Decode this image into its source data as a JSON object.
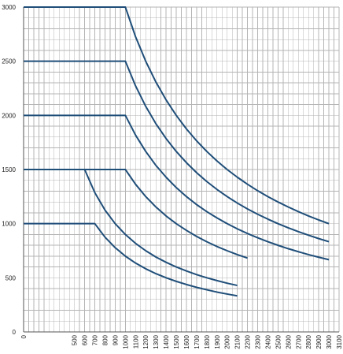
{
  "chart_data": {
    "type": "line",
    "title": "",
    "xlabel": "",
    "ylabel": "",
    "xlim": [
      0,
      3100
    ],
    "ylim": [
      0,
      3000
    ],
    "x_minor_step": 50,
    "y_minor_step": 100,
    "x_ticks": [
      0,
      500,
      600,
      700,
      800,
      900,
      1000,
      1100,
      1200,
      1300,
      1400,
      1500,
      1600,
      1700,
      1800,
      1900,
      2000,
      2100,
      2200,
      2300,
      2400,
      2500,
      2600,
      2700,
      2800,
      2900,
      3000,
      3100
    ],
    "x_tick_labels": [
      "0",
      "500",
      "600",
      "700",
      "800",
      "900",
      "1000",
      "1100",
      "1200",
      "1300",
      "1400",
      "1500",
      "1600",
      "1700",
      "1800",
      "1900",
      "2000",
      "2100",
      "2200",
      "2300",
      "2400",
      "2500",
      "2600",
      "2700",
      "2800",
      "2900",
      "3000",
      "3100"
    ],
    "y_ticks": [
      0,
      500,
      1000,
      1500,
      2000,
      2500,
      3000
    ],
    "y_tick_labels": [
      "0",
      "500",
      "1000",
      "1500",
      "2000",
      "2500",
      "3000"
    ],
    "grid": true,
    "legend": "none",
    "line_color": "#1f4e79",
    "series": [
      {
        "x": [
          0,
          1000,
          1100,
          1200,
          1300,
          1400,
          1500,
          1600,
          1700,
          1800,
          1900,
          2000,
          2100,
          2200,
          2300,
          2400,
          2500,
          2600,
          2700,
          2800,
          2900,
          3000
        ],
        "y": [
          3000,
          3000,
          2727,
          2500,
          2308,
          2143,
          2000,
          1875,
          1765,
          1667,
          1579,
          1500,
          1429,
          1364,
          1304,
          1250,
          1200,
          1154,
          1111,
          1071,
          1034,
          1000
        ]
      },
      {
        "x": [
          0,
          1000,
          1100,
          1200,
          1300,
          1400,
          1500,
          1600,
          1700,
          1800,
          1900,
          2000,
          2100,
          2200,
          2300,
          2400,
          2500,
          2600,
          2700,
          2800,
          2900,
          3000
        ],
        "y": [
          2500,
          2500,
          2273,
          2083,
          1923,
          1786,
          1667,
          1563,
          1471,
          1389,
          1316,
          1250,
          1190,
          1136,
          1087,
          1042,
          1000,
          962,
          926,
          893,
          862,
          833
        ]
      },
      {
        "x": [
          0,
          1000,
          1100,
          1200,
          1300,
          1400,
          1500,
          1600,
          1700,
          1800,
          1900,
          2000,
          2100,
          2200,
          2300,
          2400,
          2500,
          2600,
          2700,
          2800,
          2900,
          3000
        ],
        "y": [
          2000,
          2000,
          1818,
          1667,
          1538,
          1429,
          1333,
          1250,
          1176,
          1111,
          1053,
          1000,
          952,
          909,
          870,
          833,
          800,
          769,
          741,
          714,
          690,
          667
        ]
      },
      {
        "x": [
          0,
          1000,
          1100,
          1200,
          1300,
          1400,
          1500,
          1600,
          1700,
          1800,
          1900,
          2000,
          2100,
          2200
        ],
        "y": [
          1500,
          1500,
          1364,
          1250,
          1154,
          1071,
          1000,
          938,
          882,
          833,
          789,
          750,
          714,
          682
        ]
      },
      {
        "x": [
          0,
          700,
          800,
          900,
          1000,
          1100,
          1200,
          1300,
          1400,
          1500,
          1600,
          1700,
          1800,
          1900,
          2000,
          2100
        ],
        "y": [
          1000,
          1000,
          875,
          778,
          700,
          636,
          583,
          538,
          500,
          467,
          438,
          412,
          389,
          368,
          350,
          333
        ]
      },
      {
        "x": [
          600,
          700,
          800,
          900,
          1000,
          1100,
          1200,
          1300,
          1400,
          1500,
          1600,
          1700,
          1800,
          1900,
          2000,
          2100
        ],
        "y": [
          1500,
          1286,
          1125,
          1000,
          900,
          818,
          750,
          692,
          643,
          600,
          563,
          529,
          500,
          474,
          450,
          429
        ]
      }
    ]
  }
}
